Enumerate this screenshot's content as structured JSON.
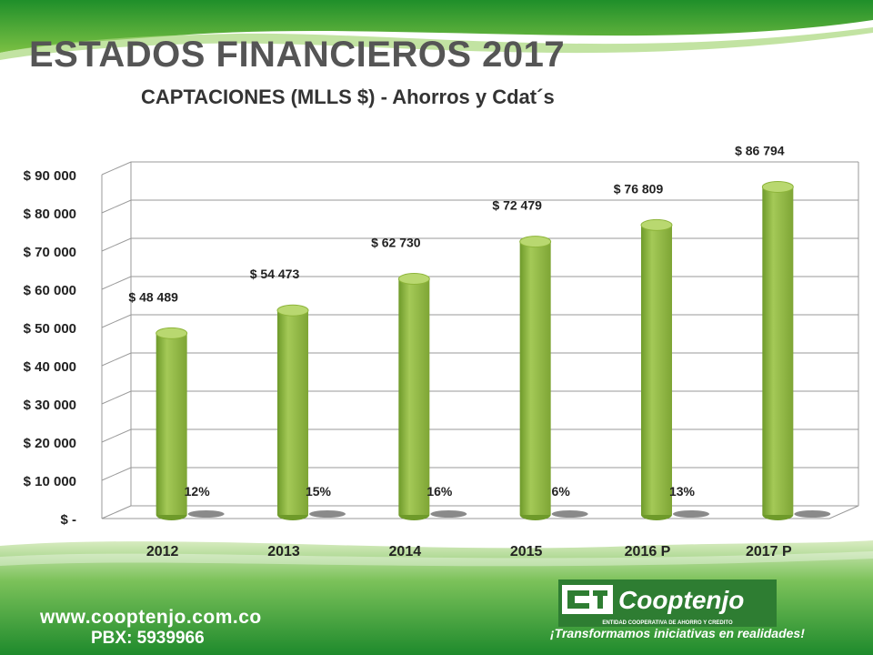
{
  "header": {
    "title": "ESTADOS FINANCIEROS 2017",
    "subtitle": "CAPTACIONES (MLLS $) - Ahorros y Cdat´s"
  },
  "footer": {
    "website": "www.cooptenjo.com.co",
    "phone": "PBX: 5939966",
    "logo_text": "Cooptenjo",
    "logo_subtext": "ENTIDAD COOPERATIVA DE AHORRO Y CRÉDITO",
    "slogan": "¡Transformamos iniciativas en realidades!"
  },
  "colors": {
    "bar": "#8db43a",
    "bar_side": "#5f7f20",
    "bar_top": "#b5d46a",
    "title": "#555555",
    "footer_green": "#2f9a2f"
  },
  "chart_data": {
    "type": "bar",
    "categories": [
      "2012",
      "2013",
      "2014",
      "2015",
      "2016 P",
      "2017 P"
    ],
    "values": [
      48489,
      54473,
      62730,
      72479,
      76809,
      86794
    ],
    "value_labels": [
      "$ 48 489",
      "$ 54 473",
      "$ 62 730",
      "$ 72 479",
      "$ 76 809",
      "$ 86 794"
    ],
    "growth_labels": [
      "12%",
      "15%",
      "16%",
      "6%",
      "13%"
    ],
    "y_ticks": [
      "$ -",
      "$ 10 000",
      "$ 20 000",
      "$ 30 000",
      "$ 40 000",
      "$ 50 000",
      "$ 60 000",
      "$ 70 000",
      "$ 80 000",
      "$ 90 000"
    ],
    "ylim": [
      0,
      90000
    ],
    "grid": true,
    "style": "3d-cylinder"
  }
}
